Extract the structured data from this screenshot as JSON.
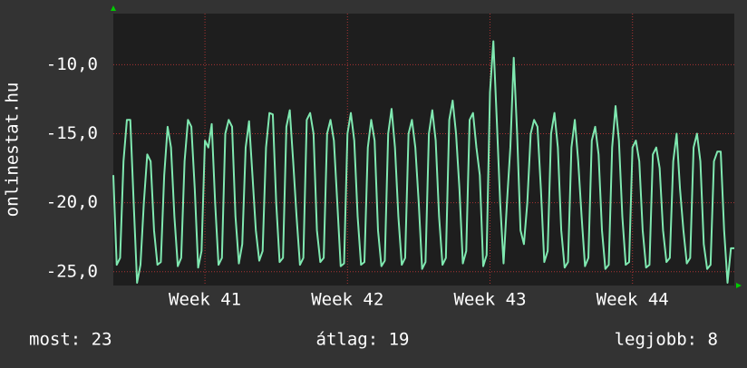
{
  "chart_data": {
    "type": "line",
    "ylabel": "onlinestat.hu",
    "stats": [
      "most: 23",
      "átlag: 19",
      "legjobb: 8"
    ],
    "xlim": [
      0,
      183
    ],
    "xticks": [
      {
        "value": 27,
        "label": "Week 41"
      },
      {
        "value": 69,
        "label": "Week 42"
      },
      {
        "value": 111,
        "label": "Week 43"
      },
      {
        "value": 153,
        "label": "Week 44"
      }
    ],
    "ylim": [
      -26,
      -6.3
    ],
    "yticks": [
      {
        "value": -10,
        "label": "-10,0"
      },
      {
        "value": -15,
        "label": "-15,0"
      },
      {
        "value": -20,
        "label": "-20,0"
      },
      {
        "value": -25,
        "label": "-25,0"
      }
    ],
    "grid": true,
    "series": [
      {
        "color": "#7fe8b0",
        "values": [
          -18,
          -24.5,
          -24,
          -17,
          -14,
          -14,
          -20,
          -25.8,
          -24.5,
          -20,
          -16.5,
          -17,
          -22,
          -24.5,
          -24.3,
          -18,
          -14.5,
          -16,
          -21,
          -24.6,
          -24,
          -17,
          -14,
          -14.5,
          -19,
          -24.7,
          -23.5,
          -15.5,
          -16,
          -14.3,
          -20,
          -24.5,
          -24,
          -15,
          -14,
          -14.5,
          -21,
          -24.4,
          -23,
          -16,
          -14.1,
          -18,
          -22,
          -24.2,
          -23.5,
          -16,
          -13.5,
          -13.6,
          -20,
          -24.3,
          -24,
          -14.5,
          -13.3,
          -17,
          -21,
          -24.5,
          -24,
          -14,
          -13.5,
          -15,
          -22,
          -24.3,
          -24,
          -15,
          -14,
          -15.5,
          -20,
          -24.6,
          -24.4,
          -15,
          -13.5,
          -15.5,
          -21,
          -24.5,
          -24.3,
          -16,
          -14,
          -15.5,
          -22,
          -24.6,
          -24.2,
          -15,
          -13.2,
          -16,
          -21,
          -24.5,
          -24,
          -15,
          -14,
          -16,
          -20,
          -24.8,
          -24.3,
          -15,
          -13.3,
          -15.5,
          -21,
          -24.5,
          -24,
          -14,
          -12.6,
          -15,
          -19,
          -24.4,
          -23.5,
          -14,
          -13.5,
          -16,
          -18,
          -24.6,
          -23.8,
          -12,
          -8.3,
          -14,
          -20,
          -24.4,
          -20,
          -16,
          -9.5,
          -15,
          -22,
          -23,
          -20,
          -15,
          -14,
          -14.5,
          -19,
          -24.3,
          -23.5,
          -15,
          -13.5,
          -16,
          -22,
          -24.7,
          -24.3,
          -16,
          -14,
          -17,
          -21,
          -24.6,
          -24,
          -15.5,
          -14.5,
          -16.5,
          -22,
          -24.8,
          -24.5,
          -16,
          -13,
          -15.5,
          -21,
          -24.5,
          -24.3,
          -16,
          -15.5,
          -17,
          -22,
          -24.7,
          -24.5,
          -16.5,
          -16,
          -17.5,
          -22,
          -24.3,
          -24,
          -17,
          -15,
          -19,
          -22,
          -24.4,
          -24,
          -16,
          -15,
          -17,
          -23,
          -24.8,
          -24.5,
          -17,
          -16.3,
          -16.3,
          -22,
          -25.8,
          -23.3,
          -23.3
        ]
      }
    ]
  }
}
